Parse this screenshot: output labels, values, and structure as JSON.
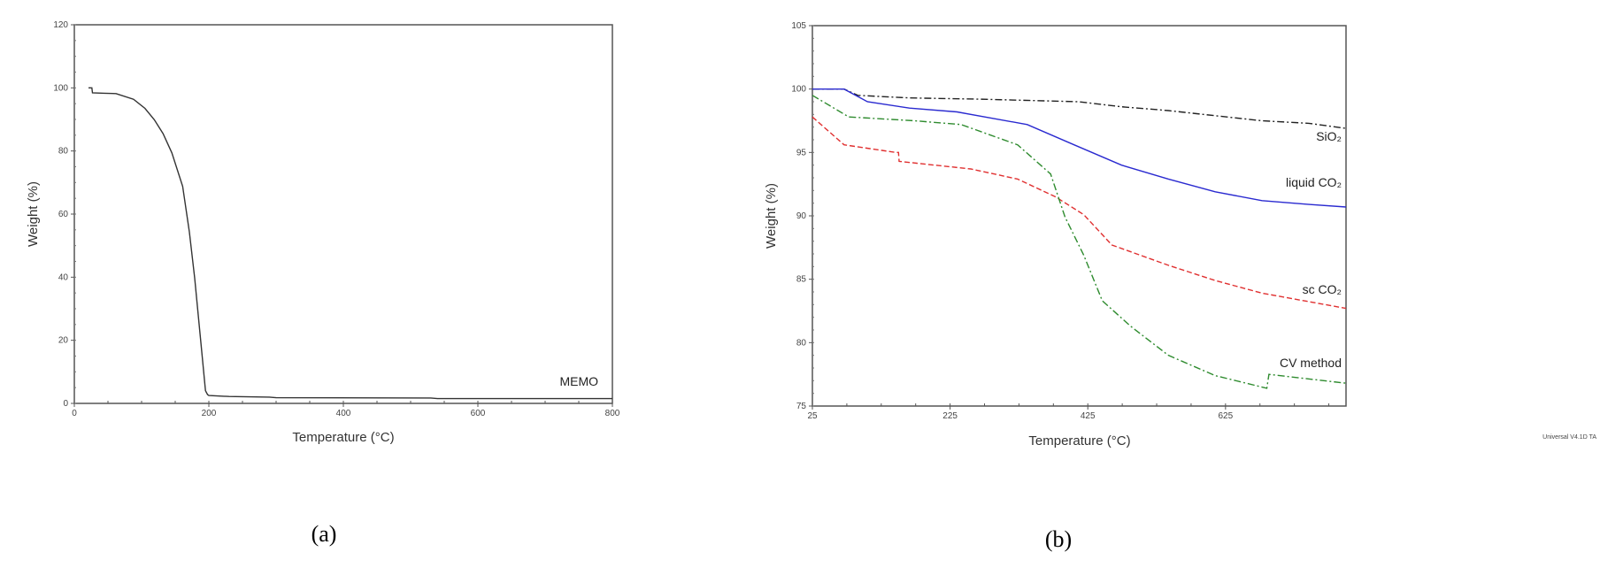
{
  "chart_data": [
    {
      "type": "line",
      "panel_label": "(a)",
      "xlabel": "Temperature (°C)",
      "ylabel": "Weight (%)",
      "xlim": [
        0,
        800
      ],
      "ylim": [
        0,
        120
      ],
      "xticks": [
        0,
        200,
        400,
        600,
        800
      ],
      "yticks": [
        0,
        20,
        40,
        60,
        80,
        100,
        120
      ],
      "grid": false,
      "series": [
        {
          "name": "MEMO",
          "color": "#333333",
          "style": "solid",
          "x": [
            21,
            26,
            27,
            45,
            62,
            88,
            105,
            119,
            132,
            145,
            161,
            171,
            179,
            187,
            195,
            198,
            200,
            230,
            290,
            300,
            530,
            540,
            800
          ],
          "y": [
            100,
            100,
            98.4,
            98.3,
            98.2,
            96.4,
            93.5,
            89.9,
            85.5,
            79.4,
            68.8,
            54.3,
            39.7,
            21.9,
            4,
            2.8,
            2.5,
            2.2,
            2.0,
            1.8,
            1.7,
            1.5,
            1.5
          ]
        }
      ]
    },
    {
      "type": "line",
      "panel_label": "(b)",
      "xlabel": "Temperature (°C)",
      "ylabel": "Weight (%)",
      "xlim": [
        25,
        800
      ],
      "ylim": [
        75,
        105
      ],
      "xticks": [
        25,
        225,
        425,
        625
      ],
      "yticks": [
        75,
        80,
        85,
        90,
        95,
        100,
        105
      ],
      "grid": false,
      "footer_text": "Universal V4.1D TA",
      "series": [
        {
          "name": "SiO₂",
          "color": "#222222",
          "style": "dashdot",
          "x": [
            25,
            71,
            91,
            166,
            269,
            412,
            474,
            542,
            610,
            678,
            746,
            800
          ],
          "y": [
            100,
            100,
            99.5,
            99.3,
            99.2,
            99.0,
            98.6,
            98.3,
            97.9,
            97.5,
            97.3,
            96.9
          ]
        },
        {
          "name": "liquid CO₂",
          "color": "#2a2ad0",
          "style": "solid",
          "x": [
            25,
            71,
            105,
            166,
            235,
            337,
            405,
            474,
            542,
            610,
            678,
            746,
            800
          ],
          "y": [
            100,
            100,
            99.0,
            98.5,
            98.2,
            97.2,
            95.6,
            94.0,
            92.9,
            91.9,
            91.2,
            90.9,
            90.7
          ]
        },
        {
          "name": "sc CO₂",
          "color": "#e03030",
          "style": "dashed",
          "x": [
            25,
            71,
            146,
            150,
            151,
            255,
            323,
            378,
            419,
            460,
            542,
            610,
            678,
            800
          ],
          "y": [
            97.8,
            95.6,
            95.0,
            95.0,
            94.3,
            93.7,
            92.9,
            91.5,
            90.1,
            87.7,
            86.1,
            84.9,
            83.9,
            82.7
          ]
        },
        {
          "name": "CV method",
          "color": "#2e8b2e",
          "style": "dashdot",
          "x": [
            25,
            78,
            173,
            241,
            323,
            371,
            392,
            419,
            446,
            487,
            542,
            610,
            685,
            688,
            800
          ],
          "y": [
            99.5,
            97.8,
            97.5,
            97.2,
            95.6,
            93.3,
            89.9,
            86.9,
            83.3,
            81.3,
            79.0,
            77.4,
            76.4,
            77.5,
            76.8
          ]
        }
      ]
    }
  ]
}
